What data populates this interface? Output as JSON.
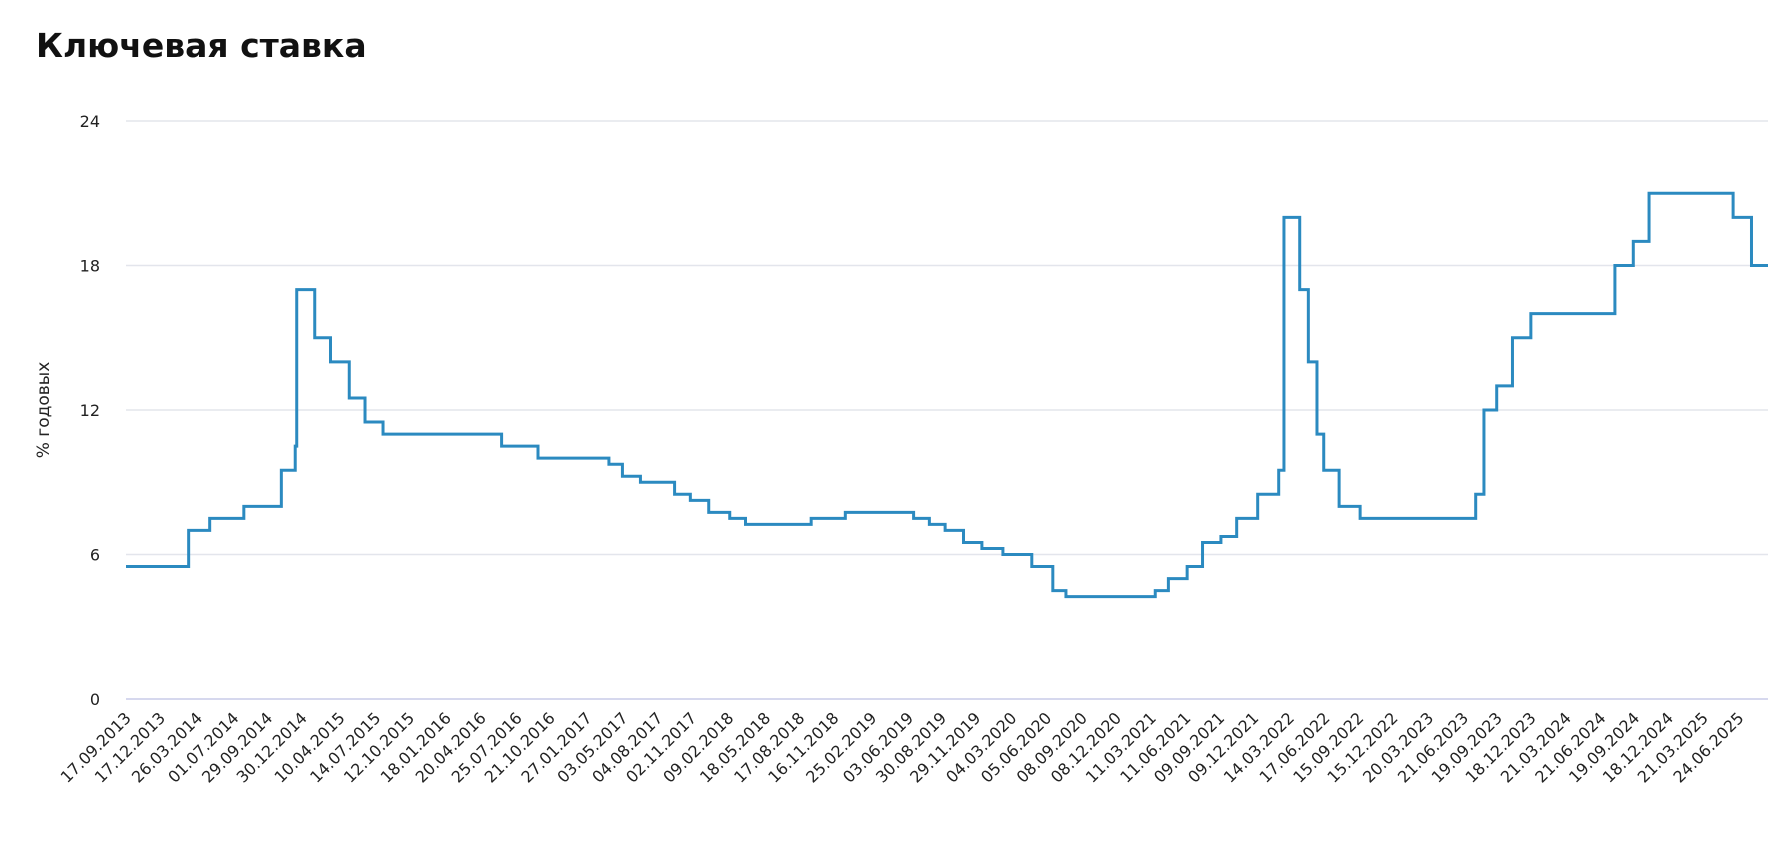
{
  "chart_data": {
    "type": "line",
    "title": "Ключевая ставка",
    "y_label": "% годовых",
    "step": true,
    "color": "#2b8ac0",
    "x": [
      "17.09.2013",
      "03.03.2014",
      "28.04.2014",
      "28.07.2014",
      "05.11.2014",
      "12.12.2014",
      "16.12.2014",
      "02.02.2015",
      "16.03.2015",
      "05.05.2015",
      "16.06.2015",
      "03.08.2015",
      "14.06.2016",
      "19.09.2016",
      "27.03.2017",
      "02.05.2017",
      "19.06.2017",
      "18.09.2017",
      "30.10.2017",
      "18.12.2017",
      "12.02.2018",
      "26.03.2018",
      "17.09.2018",
      "17.12.2018",
      "17.06.2019",
      "29.07.2019",
      "09.09.2019",
      "28.10.2019",
      "16.12.2019",
      "10.02.2020",
      "27.04.2020",
      "22.06.2020",
      "27.07.2020",
      "22.03.2021",
      "26.04.2021",
      "15.06.2021",
      "26.07.2021",
      "13.09.2021",
      "25.10.2021",
      "20.12.2021",
      "14.02.2022",
      "28.02.2022",
      "11.04.2022",
      "04.05.2022",
      "27.05.2022",
      "14.06.2022",
      "25.07.2022",
      "19.09.2022",
      "24.07.2023",
      "15.08.2023",
      "18.09.2023",
      "30.10.2023",
      "18.12.2023",
      "29.07.2024",
      "16.09.2024",
      "28.10.2024",
      "09.06.2025",
      "28.07.2025",
      "10.09.2025"
    ],
    "values": [
      5.5,
      7,
      7.5,
      8,
      9.5,
      10.5,
      17,
      15,
      14,
      12.5,
      11.5,
      11,
      10.5,
      10,
      9.75,
      9.25,
      9,
      8.5,
      8.25,
      7.75,
      7.5,
      7.25,
      7.5,
      7.75,
      7.5,
      7.25,
      7,
      6.5,
      6.25,
      6,
      5.5,
      4.5,
      4.25,
      4.5,
      5,
      5.5,
      6.5,
      6.75,
      7.5,
      8.5,
      9.5,
      20,
      17,
      14,
      11,
      9.5,
      8,
      7.5,
      8.5,
      12,
      13,
      15,
      16,
      18,
      19,
      21,
      20,
      18,
      18
    ],
    "xlim": [
      "17.09.2013",
      "10.09.2025"
    ],
    "xticks": [
      "17.09.2013",
      "17.12.2013",
      "26.03.2014",
      "01.07.2014",
      "29.09.2014",
      "30.12.2014",
      "10.04.2015",
      "14.07.2015",
      "12.10.2015",
      "18.01.2016",
      "20.04.2016",
      "25.07.2016",
      "21.10.2016",
      "27.01.2017",
      "03.05.2017",
      "04.08.2017",
      "02.11.2017",
      "09.02.2018",
      "18.05.2018",
      "17.08.2018",
      "16.11.2018",
      "25.02.2019",
      "03.06.2019",
      "30.08.2019",
      "29.11.2019",
      "04.03.2020",
      "05.06.2020",
      "08.09.2020",
      "08.12.2020",
      "11.03.2021",
      "11.06.2021",
      "09.09.2021",
      "09.12.2021",
      "14.03.2022",
      "17.06.2022",
      "15.09.2022",
      "15.12.2022",
      "20.03.2023",
      "21.06.2023",
      "19.09.2023",
      "18.12.2023",
      "21.03.2024",
      "21.06.2024",
      "19.09.2024",
      "18.12.2024",
      "21.03.2025",
      "24.06.2025"
    ],
    "ylim": [
      0,
      24
    ],
    "yticks": [
      0,
      6,
      12,
      18,
      24
    ],
    "grid": true
  }
}
